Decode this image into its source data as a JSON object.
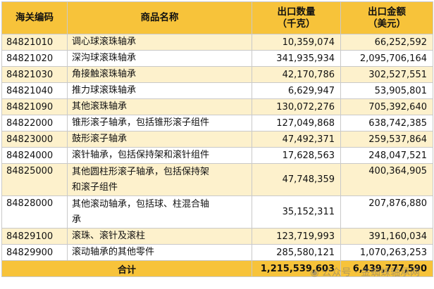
{
  "headers": {
    "code": "海关编码",
    "name": "商品名称",
    "qty_line1": "出口数量",
    "qty_line2": "（千克）",
    "amt_line1": "出口金额",
    "amt_line2": "（美元）"
  },
  "rows": [
    {
      "code": "84821010",
      "name": "调心球滚珠轴承",
      "qty": "10,359,074",
      "amt": "66,252,592"
    },
    {
      "code": "84821020",
      "name": "深沟球滚珠轴承",
      "qty": "341,935,934",
      "amt": "2,095,706,164"
    },
    {
      "code": "84821030",
      "name": "角接触滚珠轴承",
      "qty": "42,170,786",
      "amt": "302,527,551"
    },
    {
      "code": "84821040",
      "name": "推力球滚珠轴承",
      "qty": "6,629,947",
      "amt": "53,905,801"
    },
    {
      "code": "84821090",
      "name": "其他滚珠轴承",
      "qty": "130,072,276",
      "amt": "705,392,640"
    },
    {
      "code": "84822000",
      "name": "锥形滚子轴承，包括锥形滚子组件",
      "qty": "127,049,868",
      "amt": "638,742,385"
    },
    {
      "code": "84823000",
      "name": "鼓形滚子轴承",
      "qty": "47,492,371",
      "amt": "259,537,864"
    },
    {
      "code": "84824000",
      "name": "滚针轴承，包括保持架和滚针组件",
      "qty": "17,628,563",
      "amt": "248,047,521"
    },
    {
      "code": "84825000",
      "name_line1": "其他圆柱形滚子轴承，包括保持架",
      "name_line2": "和滚子组件",
      "qty": "47,748,359",
      "amt": "400,364,905"
    },
    {
      "code": "84828000",
      "name_line1": "其他滚动轴承，包括球、柱混合轴",
      "name_line2": "承",
      "qty": "35,152,311",
      "amt": "207,876,880"
    },
    {
      "code": "84829100",
      "name": "滚珠、滚针及滚柱",
      "qty": "123,719,993",
      "amt": "391,160,034"
    },
    {
      "code": "84829900",
      "name": "滚动轴承的其他零件",
      "qty": "285,580,121",
      "amt": "1,070,263,253"
    }
  ],
  "total": {
    "label": "合计",
    "qty": "1,215,539,603",
    "amt": "6,439,777,590"
  },
  "watermark": "公众号 · 金蜘蛛轴承网",
  "colors": {
    "header": "#f7c33a",
    "band": "#fdf1cc",
    "grid": "#c9c9c9"
  }
}
